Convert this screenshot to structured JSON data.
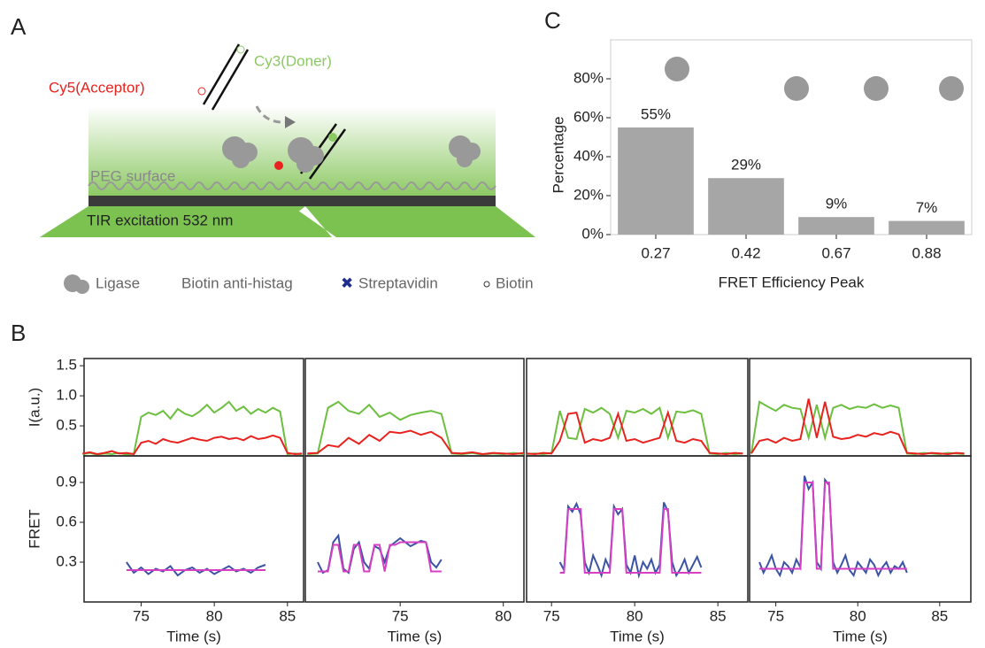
{
  "panel_labels": [
    "A",
    "B",
    "C"
  ],
  "diagram": {
    "labels": [
      "Cy5(Acceptor)",
      "Cy3(Doner)",
      "PEG surface",
      "TIR excitation 532 nm"
    ],
    "legend": [
      "Ligase",
      "Biotin anti-histag",
      "Streptavidin",
      "Biotin"
    ]
  },
  "chart_data": [
    {
      "type": "bar",
      "categories": [
        "0.27",
        "0.42",
        "0.67",
        "0.88"
      ],
      "values": [
        55,
        29,
        9,
        7
      ],
      "value_labels": [
        "55%",
        "29%",
        "9%",
        "7%"
      ],
      "color": "#a6a6a6",
      "ylim": [
        0,
        100
      ],
      "yticks": [
        {
          "value": 0,
          "label": "0%"
        },
        {
          "value": 20,
          "label": "20%"
        },
        {
          "value": 40,
          "label": "40%"
        },
        {
          "value": 60,
          "label": "60%"
        },
        {
          "value": 80,
          "label": "80%"
        }
      ],
      "xlabel": "FRET Efficiency Peak",
      "ylabel": "Percentage"
    },
    {
      "type": "line",
      "ylabel": "I(a.u.)",
      "xlim": [
        71.1,
        86.1
      ],
      "ylim": [
        0,
        1.62
      ],
      "yticks": [
        0.5,
        {
          "value": 1,
          "label": "1.0"
        },
        1.5
      ],
      "x": [
        71,
        71.5,
        72,
        72.5,
        73,
        73.5,
        74,
        74.5,
        75,
        75.5,
        76,
        76.5,
        77,
        77.5,
        78,
        78.5,
        79,
        79.5,
        80,
        80.5,
        81,
        81.5,
        82,
        82.5,
        83,
        83.5,
        84,
        84.5,
        85,
        85.5,
        86
      ],
      "series": [
        {
          "color": "#6cbf3f",
          "values": [
            0.03,
            0.05,
            0.02,
            0.04,
            0.03,
            0.05,
            0.02,
            0.04,
            0.65,
            0.72,
            0.68,
            0.75,
            0.62,
            0.78,
            0.7,
            0.66,
            0.74,
            0.85,
            0.72,
            0.8,
            0.9,
            0.75,
            0.82,
            0.7,
            0.78,
            0.72,
            0.8,
            0.74,
            0.03,
            0.04,
            0.02
          ]
        },
        {
          "color": "#e8231f",
          "values": [
            0.04,
            0.06,
            0.03,
            0.05,
            0.08,
            0.04,
            0.05,
            0.03,
            0.22,
            0.25,
            0.2,
            0.28,
            0.24,
            0.22,
            0.26,
            0.3,
            0.27,
            0.25,
            0.3,
            0.32,
            0.28,
            0.3,
            0.26,
            0.33,
            0.28,
            0.3,
            0.34,
            0.3,
            0.05,
            0.03,
            0.04
          ]
        }
      ]
    },
    {
      "type": "line",
      "xlim": [
        70.4,
        81
      ],
      "ylim": [
        0,
        1.62
      ],
      "x": [
        70.5,
        71,
        71.5,
        72,
        72.5,
        73,
        73.5,
        74,
        74.5,
        75,
        75.5,
        76,
        76.5,
        77,
        77.5,
        78,
        78.5,
        79,
        79.5,
        80,
        80.5,
        81
      ],
      "series": [
        {
          "color": "#6cbf3f",
          "values": [
            0.03,
            0.04,
            0.8,
            0.9,
            0.75,
            0.7,
            0.85,
            0.65,
            0.72,
            0.6,
            0.68,
            0.72,
            0.75,
            0.7,
            0.04,
            0.03,
            0.05,
            0.02,
            0.04,
            0.03,
            0.05,
            0.03
          ]
        },
        {
          "color": "#e8231f",
          "values": [
            0.04,
            0.05,
            0.18,
            0.15,
            0.3,
            0.2,
            0.35,
            0.25,
            0.4,
            0.38,
            0.42,
            0.35,
            0.4,
            0.3,
            0.05,
            0.04,
            0.06,
            0.03,
            0.05,
            0.04,
            0.03,
            0.05
          ]
        }
      ]
    },
    {
      "type": "line",
      "xlim": [
        73.5,
        86.8
      ],
      "ylim": [
        0,
        1.62
      ],
      "x": [
        73.5,
        74,
        74.5,
        75,
        75.5,
        76,
        76.5,
        77,
        77.5,
        78,
        78.5,
        79,
        79.5,
        80,
        80.5,
        81,
        81.5,
        82,
        82.5,
        83,
        83.5,
        84,
        84.5,
        85,
        85.5,
        86,
        86.5
      ],
      "series": [
        {
          "color": "#6cbf3f",
          "values": [
            0.03,
            0.04,
            0.03,
            0.05,
            0.75,
            0.3,
            0.28,
            0.78,
            0.72,
            0.8,
            0.7,
            0.3,
            0.75,
            0.72,
            0.78,
            0.7,
            0.8,
            0.3,
            0.74,
            0.72,
            0.76,
            0.7,
            0.04,
            0.03,
            0.05,
            0.03,
            0.04
          ]
        },
        {
          "color": "#e8231f",
          "values": [
            0.04,
            0.03,
            0.05,
            0.04,
            0.25,
            0.7,
            0.72,
            0.22,
            0.28,
            0.25,
            0.3,
            0.7,
            0.25,
            0.28,
            0.22,
            0.26,
            0.3,
            0.72,
            0.25,
            0.22,
            0.28,
            0.25,
            0.05,
            0.04,
            0.03,
            0.05,
            0.04
          ]
        }
      ]
    },
    {
      "type": "line",
      "xlim": [
        73.4,
        86.9
      ],
      "ylim": [
        0,
        1.62
      ],
      "x": [
        73.5,
        74,
        74.5,
        75,
        75.5,
        76,
        76.5,
        77,
        77.5,
        78,
        78.5,
        79,
        79.5,
        80,
        80.5,
        81,
        81.5,
        82,
        82.5,
        83,
        83.5,
        84,
        84.5,
        85,
        85.5,
        86,
        86.5
      ],
      "series": [
        {
          "color": "#6cbf3f",
          "values": [
            0.04,
            0.9,
            0.82,
            0.75,
            0.85,
            0.8,
            0.78,
            0.3,
            0.85,
            0.3,
            0.8,
            0.85,
            0.78,
            0.82,
            0.8,
            0.86,
            0.8,
            0.84,
            0.8,
            0.04,
            0.03,
            0.05,
            0.04,
            0.03,
            0.05,
            0.04,
            0.03
          ]
        },
        {
          "color": "#e8231f",
          "values": [
            0.04,
            0.25,
            0.28,
            0.22,
            0.3,
            0.25,
            0.28,
            0.95,
            0.3,
            0.9,
            0.32,
            0.28,
            0.3,
            0.35,
            0.32,
            0.38,
            0.35,
            0.4,
            0.36,
            0.05,
            0.04,
            0.03,
            0.05,
            0.04,
            0.03,
            0.05,
            0.04
          ]
        }
      ]
    },
    {
      "type": "line",
      "ylabel": "FRET",
      "xlabel": "Time (s)",
      "xlim": [
        71.1,
        86.1
      ],
      "xticks": [
        75,
        80,
        85
      ],
      "ylim": [
        0,
        1.1
      ],
      "yticks": [
        0.3,
        0.6,
        0.9
      ],
      "x": [
        74,
        74.5,
        75,
        75.5,
        76,
        76.5,
        77,
        77.5,
        78,
        78.5,
        79,
        79.5,
        80,
        80.5,
        81,
        81.5,
        82,
        82.5,
        83,
        83.5
      ],
      "series": [
        {
          "color": "#3a53a4",
          "values": [
            0.3,
            0.22,
            0.26,
            0.21,
            0.25,
            0.23,
            0.27,
            0.2,
            0.24,
            0.26,
            0.22,
            0.25,
            0.21,
            0.24,
            0.27,
            0.23,
            0.25,
            0.22,
            0.26,
            0.28
          ]
        },
        {
          "color": "#d63fc4",
          "values": [
            0.24,
            0.24,
            0.24,
            0.24,
            0.24,
            0.24,
            0.24,
            0.24,
            0.24,
            0.24,
            0.24,
            0.24,
            0.24,
            0.24,
            0.24,
            0.24,
            0.24,
            0.24,
            0.24,
            0.24
          ]
        }
      ]
    },
    {
      "type": "line",
      "xlabel": "Time (s)",
      "xlim": [
        70.4,
        81
      ],
      "xticks": [
        75,
        80
      ],
      "ylim": [
        0,
        1.1
      ],
      "x": [
        71,
        71.25,
        71.5,
        71.75,
        72,
        72.25,
        72.5,
        72.75,
        73,
        73.25,
        73.5,
        73.75,
        74,
        74.25,
        74.5,
        74.75,
        75,
        75.25,
        75.5,
        75.75,
        76,
        76.25,
        76.5,
        76.75,
        77
      ],
      "series": [
        {
          "color": "#3a53a4",
          "values": [
            0.3,
            0.22,
            0.24,
            0.45,
            0.5,
            0.25,
            0.22,
            0.4,
            0.45,
            0.3,
            0.25,
            0.42,
            0.4,
            0.3,
            0.42,
            0.45,
            0.48,
            0.45,
            0.42,
            0.44,
            0.46,
            0.45,
            0.3,
            0.26,
            0.32
          ]
        },
        {
          "color": "#d63fc4",
          "values": [
            0.23,
            0.23,
            0.23,
            0.43,
            0.43,
            0.23,
            0.23,
            0.43,
            0.43,
            0.23,
            0.23,
            0.43,
            0.43,
            0.23,
            0.43,
            0.43,
            0.45,
            0.45,
            0.45,
            0.45,
            0.45,
            0.45,
            0.23,
            0.23,
            0.23
          ]
        }
      ]
    },
    {
      "type": "line",
      "xlabel": "Time (s)",
      "xlim": [
        73.5,
        86.8
      ],
      "xticks": [
        75,
        80,
        85
      ],
      "ylim": [
        0,
        1.1
      ],
      "x": [
        75.5,
        75.75,
        76,
        76.25,
        76.5,
        76.75,
        77,
        77.25,
        77.5,
        77.75,
        78,
        78.25,
        78.5,
        78.75,
        79,
        79.25,
        79.5,
        79.75,
        80,
        80.25,
        80.5,
        80.75,
        81,
        81.25,
        81.5,
        81.75,
        82,
        82.25,
        82.5,
        82.75,
        83,
        83.25,
        83.5,
        83.75,
        84
      ],
      "series": [
        {
          "color": "#3a53a4",
          "values": [
            0.3,
            0.24,
            0.72,
            0.68,
            0.74,
            0.66,
            0.3,
            0.22,
            0.35,
            0.28,
            0.2,
            0.32,
            0.25,
            0.72,
            0.66,
            0.7,
            0.28,
            0.22,
            0.35,
            0.2,
            0.3,
            0.25,
            0.32,
            0.22,
            0.28,
            0.75,
            0.68,
            0.3,
            0.2,
            0.25,
            0.32,
            0.22,
            0.28,
            0.34,
            0.26
          ]
        },
        {
          "color": "#d63fc4",
          "values": [
            0.22,
            0.22,
            0.7,
            0.7,
            0.7,
            0.7,
            0.22,
            0.22,
            0.22,
            0.22,
            0.22,
            0.22,
            0.22,
            0.7,
            0.7,
            0.7,
            0.22,
            0.22,
            0.22,
            0.22,
            0.22,
            0.22,
            0.22,
            0.22,
            0.22,
            0.7,
            0.7,
            0.22,
            0.22,
            0.22,
            0.22,
            0.22,
            0.22,
            0.22,
            0.22
          ]
        }
      ]
    },
    {
      "type": "line",
      "xlabel": "Time (s)",
      "xlim": [
        73.4,
        86.9
      ],
      "xticks": [
        75,
        80,
        85
      ],
      "ylim": [
        0,
        1.1
      ],
      "x": [
        74,
        74.25,
        74.5,
        74.75,
        75,
        75.25,
        75.5,
        75.75,
        76,
        76.25,
        76.5,
        76.75,
        77,
        77.25,
        77.5,
        77.75,
        78,
        78.25,
        78.5,
        78.75,
        79,
        79.25,
        79.5,
        79.75,
        80,
        80.25,
        80.5,
        80.75,
        81,
        81.25,
        81.5,
        81.75,
        82,
        82.25,
        82.5,
        82.75,
        83
      ],
      "series": [
        {
          "color": "#3a53a4",
          "values": [
            0.3,
            0.22,
            0.28,
            0.35,
            0.25,
            0.2,
            0.3,
            0.27,
            0.22,
            0.32,
            0.26,
            0.95,
            0.85,
            0.9,
            0.3,
            0.25,
            0.92,
            0.88,
            0.3,
            0.22,
            0.28,
            0.35,
            0.24,
            0.2,
            0.3,
            0.26,
            0.22,
            0.32,
            0.28,
            0.2,
            0.26,
            0.3,
            0.22,
            0.27,
            0.25,
            0.3,
            0.22
          ]
        },
        {
          "color": "#d63fc4",
          "values": [
            0.25,
            0.25,
            0.25,
            0.25,
            0.25,
            0.25,
            0.25,
            0.25,
            0.25,
            0.25,
            0.25,
            0.9,
            0.9,
            0.9,
            0.25,
            0.25,
            0.9,
            0.9,
            0.25,
            0.25,
            0.25,
            0.25,
            0.25,
            0.25,
            0.25,
            0.25,
            0.25,
            0.25,
            0.25,
            0.25,
            0.25,
            0.25,
            0.25,
            0.25,
            0.25,
            0.25,
            0.25
          ]
        }
      ]
    }
  ]
}
